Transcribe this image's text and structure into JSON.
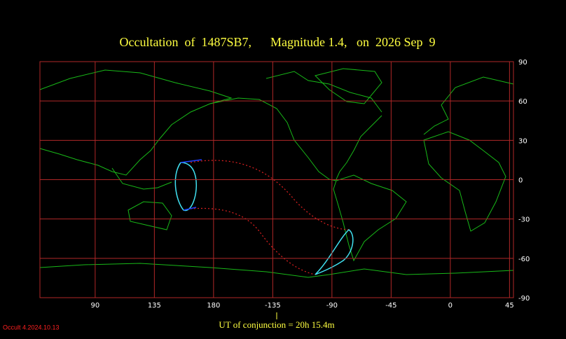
{
  "title": "Occultation  of  1487SB7,      Magnitude 1.4,   on  2026 Sep  9",
  "map": {
    "xlim": [
      48,
      408
    ],
    "ylim": [
      -90,
      90
    ],
    "lon_ticks": [
      90,
      135,
      180,
      -135,
      -90,
      -45,
      0,
      45
    ],
    "lat_ticks": [
      90,
      60,
      30,
      0,
      -30,
      -60,
      -90
    ]
  },
  "footer": "UT of conjunction = 20h 15.4m",
  "version": "Occult 4.2024.10.13"
}
